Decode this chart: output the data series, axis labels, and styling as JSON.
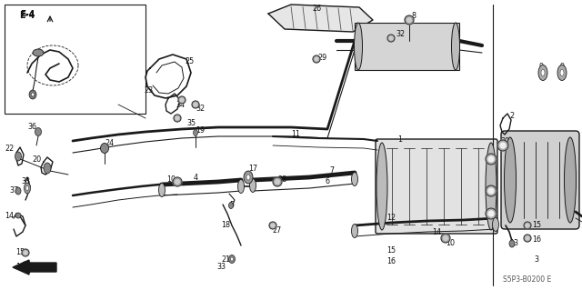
{
  "figsize": [
    6.4,
    3.19
  ],
  "dpi": 100,
  "bg_color": "#f5f5f0",
  "line_color": "#1a1a1a",
  "diagram_code": "S5P3-B0200 E",
  "label_fontsize": 5.8,
  "label_color": "#111111"
}
